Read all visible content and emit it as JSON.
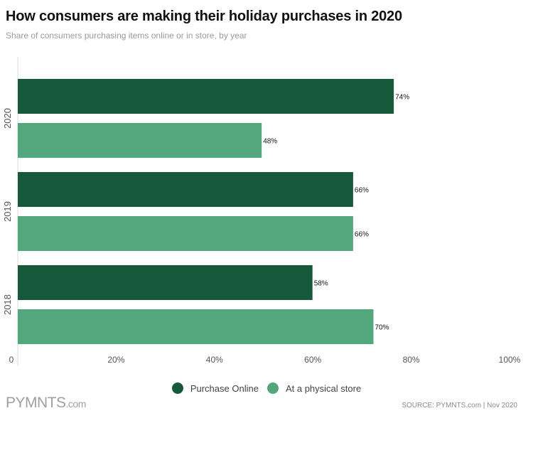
{
  "header": {
    "title": "How consumers are making their holiday purchases in 2020",
    "subtitle": "Share of consumers purchasing items online or in store, by year"
  },
  "chart_data": {
    "type": "bar",
    "orientation": "horizontal",
    "title": "How consumers are making their holiday purchases in 2020",
    "subtitle": "Share of consumers purchasing items online or in store, by year",
    "categories": [
      "2020",
      "2019",
      "2018"
    ],
    "series": [
      {
        "name": "Purchase Online",
        "color": "#17593b",
        "values": [
          74,
          66,
          58
        ],
        "labels": [
          "74%",
          "66%",
          "58%"
        ]
      },
      {
        "name": "At a physical store",
        "color": "#52a77c",
        "values": [
          48,
          66,
          70
        ],
        "labels": [
          "48%",
          "66%",
          "70%"
        ]
      }
    ],
    "xlim": [
      0,
      100
    ],
    "xticks": [
      "0",
      "20%",
      "40%",
      "60%",
      "80%",
      "100%"
    ],
    "xlabel": "",
    "ylabel": "",
    "grid": false,
    "legend_position": "bottom-center"
  },
  "legend": {
    "items": [
      {
        "label": "Purchase Online",
        "color": "#17593b"
      },
      {
        "label": "At a physical store",
        "color": "#52a77c"
      }
    ]
  },
  "footer": {
    "logo_main": "PYMNTS",
    "logo_suffix": ".com",
    "source": "SOURCE: PYMNTS.com  |  Nov 2020"
  }
}
